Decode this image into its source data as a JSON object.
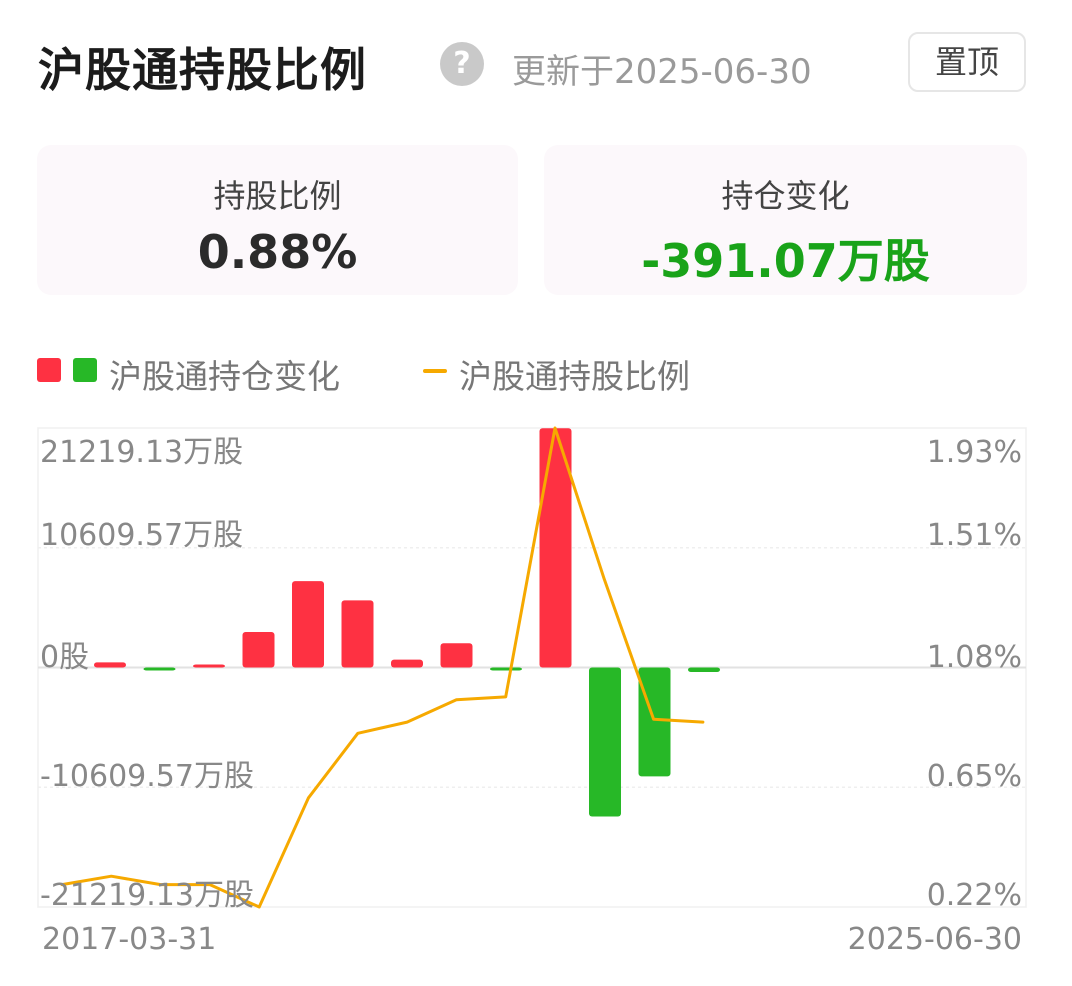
{
  "header": {
    "title": "沪股通持股比例",
    "help_icon": "question-circle-icon",
    "updated": "更新于2025-06-30",
    "pin_label": "置顶"
  },
  "cards": [
    {
      "label": "持股比例",
      "value": "0.88%",
      "color": "#2b2b2b"
    },
    {
      "label": "持仓变化",
      "value": "-391.07万股",
      "color": "#19a319"
    }
  ],
  "legend": {
    "bar_label": "沪股通持仓变化",
    "line_label": "沪股通持股比例"
  },
  "colors": {
    "up": "#fe3142",
    "down": "#27b827",
    "line": "#f6a900"
  },
  "chart_data": {
    "type": "bar",
    "left_axis": {
      "ticks": [
        "21219.13万股",
        "10609.57万股",
        "0股",
        "-10609.57万股",
        "-21219.13万股"
      ],
      "range": [
        -21219.13,
        21219.13
      ]
    },
    "right_axis": {
      "ticks": [
        "1.93%",
        "1.51%",
        "1.08%",
        "0.65%",
        "0.22%"
      ],
      "range": [
        0.22,
        1.93
      ]
    },
    "x_start": "2017-03-31",
    "x_end": "2025-06-30",
    "bars": [
      450,
      -90,
      0,
      3150,
      7650,
      5950,
      700,
      2150,
      -80,
      21200,
      -13200,
      -9650,
      -400
    ],
    "ratio": [
      0.3,
      0.33,
      0.3,
      0.3,
      0.22,
      0.61,
      0.84,
      0.88,
      0.96,
      0.97,
      1.93,
      1.39,
      0.89,
      0.88
    ],
    "grid": true
  }
}
